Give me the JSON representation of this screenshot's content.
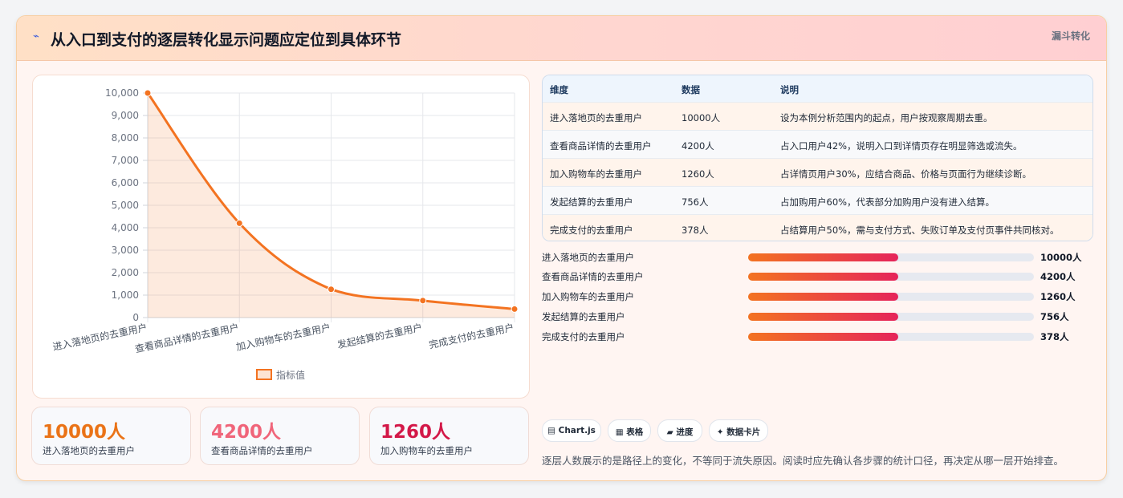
{
  "header": {
    "icon": "lightning-icon",
    "title": "从入口到支付的逐层转化显示问题应定位到具体环节",
    "tag": "漏斗转化"
  },
  "chart_data": {
    "type": "line",
    "categories": [
      "进入落地页的去重用户",
      "查看商品详情的去重用户",
      "加入购物车的去重用户",
      "发起结算的去重用户",
      "完成支付的去重用户"
    ],
    "series": [
      {
        "name": "指标值",
        "values": [
          10000,
          4200,
          1260,
          756,
          378
        ]
      }
    ],
    "yticks": [
      "0",
      "1,000",
      "2,000",
      "3,000",
      "4,000",
      "5,000",
      "6,000",
      "7,000",
      "8,000",
      "9,000",
      "10,000"
    ],
    "ylim": [
      0,
      10000
    ],
    "grid": true,
    "fill": true,
    "legend": "bottom",
    "color": "#f37321"
  },
  "table": {
    "headers": [
      "维度",
      "数据",
      "说明"
    ],
    "rows": [
      {
        "dim": "进入落地页的去重用户",
        "value": "10000人",
        "note": "设为本例分析范围内的起点，用户按观察周期去重。"
      },
      {
        "dim": "查看商品详情的去重用户",
        "value": "4200人",
        "note": "占入口用户42%，说明入口到详情页存在明显筛选或流失。"
      },
      {
        "dim": "加入购物车的去重用户",
        "value": "1260人",
        "note": "占详情页用户30%，应结合商品、价格与页面行为继续诊断。"
      },
      {
        "dim": "发起结算的去重用户",
        "value": "756人",
        "note": "占加购用户60%，代表部分加购用户没有进入结算。"
      },
      {
        "dim": "完成支付的去重用户",
        "value": "378人",
        "note": "占结算用户50%，需与支付方式、失败订单及支付页事件共同核对。"
      }
    ]
  },
  "progress": [
    {
      "label": "进入落地页的去重用户",
      "value": "10000人",
      "fill": 0.525
    },
    {
      "label": "查看商品详情的去重用户",
      "value": "4200人",
      "fill": 0.525
    },
    {
      "label": "加入购物车的去重用户",
      "value": "1260人",
      "fill": 0.525
    },
    {
      "label": "发起结算的去重用户",
      "value": "756人",
      "fill": 0.525
    },
    {
      "label": "完成支付的去重用户",
      "value": "378人",
      "fill": 0.525
    }
  ],
  "stats": [
    {
      "num": "10000人",
      "cap": "进入落地页的去重用户",
      "color": "#ea7317"
    },
    {
      "num": "4200人",
      "cap": "查看商品详情的去重用户",
      "color": "#f0657a"
    },
    {
      "num": "1260人",
      "cap": "加入购物车的去重用户",
      "color": "#d31848"
    }
  ],
  "chips": [
    {
      "icon": "chart-icon",
      "label": "▤ Chart.js"
    },
    {
      "icon": "table-icon",
      "label": "▦ 表格"
    },
    {
      "icon": "progress-icon",
      "label": "▰ 进度"
    },
    {
      "icon": "sparkle-icon",
      "label": "✦ 数据卡片"
    }
  ],
  "footnote": "逐层人数展示的是路径上的变化，不等同于流失原因。阅读时应先确认各步骤的统计口径，再决定从哪一层开始排查。"
}
